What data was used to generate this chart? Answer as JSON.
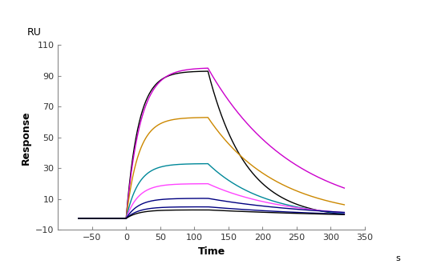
{
  "title": "RU",
  "xlabel": "Time",
  "ylabel": "Response",
  "xlabel_suffix": "s",
  "xlim": [
    -100,
    350
  ],
  "ylim": [
    -10,
    110
  ],
  "xticks": [
    -50,
    0,
    50,
    100,
    150,
    200,
    250,
    300,
    350
  ],
  "yticks": [
    -10,
    10,
    30,
    50,
    70,
    90,
    110
  ],
  "baseline_start": -70,
  "association_end": 120,
  "dissociation_end": 320,
  "curves": [
    {
      "color": "#000000",
      "peak": 93.0,
      "ka": 0.055,
      "kd": 0.018,
      "baseline": -2.5
    },
    {
      "color": "#CC00CC",
      "peak": 95.0,
      "ka": 0.048,
      "kd": 0.008,
      "baseline": -2.5
    },
    {
      "color": "#CC8800",
      "peak": 63.0,
      "ka": 0.055,
      "kd": 0.01,
      "baseline": -2.5
    },
    {
      "color": "#008899",
      "peak": 33.0,
      "ka": 0.055,
      "kd": 0.012,
      "baseline": -2.5
    },
    {
      "color": "#FF44FF",
      "peak": 20.0,
      "ka": 0.055,
      "kd": 0.009,
      "baseline": -2.5
    },
    {
      "color": "#000080",
      "peak": 10.5,
      "ka": 0.055,
      "kd": 0.006,
      "baseline": -2.5
    },
    {
      "color": "#000080",
      "peak": 5.0,
      "ka": 0.055,
      "kd": 0.005,
      "baseline": -2.5
    },
    {
      "color": "#000000",
      "peak": 3.0,
      "ka": 0.055,
      "kd": 0.004,
      "baseline": -2.5
    }
  ],
  "background_color": "#ffffff"
}
